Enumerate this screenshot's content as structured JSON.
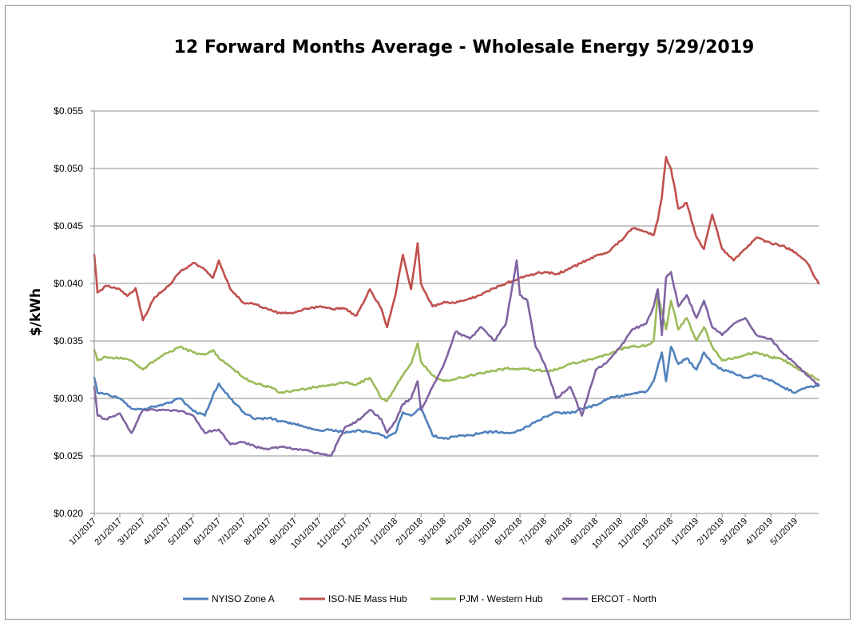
{
  "chart_data": {
    "type": "line",
    "title": "12 Forward Months Average - Wholesale Energy 5/29/2019",
    "xlabel": "",
    "ylabel": "$/kWh",
    "ylim": [
      0.02,
      0.055
    ],
    "y_ticks": [
      "$0.020",
      "$0.025",
      "$0.030",
      "$0.035",
      "$0.040",
      "$0.045",
      "$0.050",
      "$0.055"
    ],
    "y_tick_values": [
      0.02,
      0.025,
      0.03,
      0.035,
      0.04,
      0.045,
      0.05,
      0.055
    ],
    "x_range": [
      "1/1/2017",
      "5/29/2019"
    ],
    "x_ticks": [
      "1/1/2017",
      "2/1/2017",
      "3/1/2017",
      "4/1/2017",
      "5/1/2017",
      "6/1/2017",
      "7/1/2017",
      "8/1/2017",
      "9/1/2017",
      "10/1/2017",
      "11/1/2017",
      "12/1/2017",
      "1/1/2018",
      "2/1/2018",
      "3/1/2018",
      "4/1/2018",
      "5/1/2018",
      "6/1/2018",
      "7/1/2018",
      "8/1/2018",
      "9/1/2018",
      "10/1/2018",
      "11/1/2018",
      "12/1/2018",
      "1/1/2019",
      "2/1/2019",
      "3/1/2019",
      "4/1/2019",
      "5/1/2019"
    ],
    "grid": true,
    "legend_position": "bottom",
    "series": [
      {
        "name": "NYISO Zone A",
        "color": "#4f81bd",
        "x": [
          "1/1/2017",
          "1/5/2017",
          "1/15/2017",
          "2/1/2017",
          "2/15/2017",
          "3/1/2017",
          "3/15/2017",
          "4/1/2017",
          "4/15/2017",
          "5/1/2017",
          "5/15/2017",
          "5/25/2017",
          "6/1/2017",
          "6/15/2017",
          "7/1/2017",
          "7/15/2017",
          "8/1/2017",
          "8/15/2017",
          "9/1/2017",
          "9/15/2017",
          "10/1/2017",
          "10/15/2017",
          "11/1/2017",
          "11/15/2017",
          "12/1/2017",
          "12/15/2017",
          "12/22/2017",
          "1/1/2018",
          "1/10/2018",
          "1/20/2018",
          "2/1/2018",
          "2/15/2018",
          "3/1/2018",
          "3/15/2018",
          "4/1/2018",
          "4/15/2018",
          "5/1/2018",
          "5/15/2018",
          "6/1/2018",
          "6/15/2018",
          "7/1/2018",
          "7/15/2018",
          "8/1/2018",
          "8/15/2018",
          "9/1/2018",
          "9/15/2018",
          "10/1/2018",
          "10/15/2018",
          "11/1/2018",
          "11/10/2018",
          "11/20/2018",
          "11/25/2018",
          "12/1/2018",
          "12/10/2018",
          "12/20/2018",
          "1/1/2019",
          "1/10/2019",
          "1/20/2019",
          "2/1/2019",
          "2/15/2019",
          "3/1/2019",
          "3/15/2019",
          "4/1/2019",
          "4/15/2019",
          "5/1/2019",
          "5/15/2019",
          "5/29/2019"
        ],
        "y": [
          0.0318,
          0.0305,
          0.0304,
          0.03,
          0.0291,
          0.029,
          0.0293,
          0.0296,
          0.03,
          0.0289,
          0.0285,
          0.0303,
          0.0313,
          0.03,
          0.0288,
          0.0282,
          0.0283,
          0.028,
          0.0278,
          0.0275,
          0.0272,
          0.0273,
          0.027,
          0.0272,
          0.0271,
          0.0268,
          0.0266,
          0.027,
          0.0288,
          0.0285,
          0.0293,
          0.0268,
          0.0265,
          0.0267,
          0.0268,
          0.027,
          0.0271,
          0.027,
          0.0272,
          0.0278,
          0.0284,
          0.0288,
          0.0287,
          0.0291,
          0.0294,
          0.03,
          0.0302,
          0.0304,
          0.0306,
          0.0315,
          0.034,
          0.0315,
          0.0345,
          0.033,
          0.0335,
          0.0325,
          0.034,
          0.033,
          0.0325,
          0.0322,
          0.0318,
          0.032,
          0.0316,
          0.031,
          0.0305,
          0.031,
          0.0311
        ]
      },
      {
        "name": "ISO-NE Mass Hub",
        "color": "#c0504d",
        "x": [
          "1/1/2017",
          "1/5/2017",
          "1/15/2017",
          "2/1/2017",
          "2/10/2017",
          "2/20/2017",
          "3/1/2017",
          "3/15/2017",
          "4/1/2017",
          "4/15/2017",
          "5/1/2017",
          "5/15/2017",
          "5/25/2017",
          "6/1/2017",
          "6/15/2017",
          "7/1/2017",
          "7/15/2017",
          "8/1/2017",
          "8/15/2017",
          "9/1/2017",
          "9/15/2017",
          "10/1/2017",
          "10/15/2017",
          "11/1/2017",
          "11/15/2017",
          "12/1/2017",
          "12/15/2017",
          "12/22/2017",
          "1/1/2018",
          "1/10/2018",
          "1/20/2018",
          "1/28/2018",
          "2/1/2018",
          "2/15/2018",
          "3/1/2018",
          "3/15/2018",
          "4/1/2018",
          "4/15/2018",
          "5/1/2018",
          "5/15/2018",
          "6/1/2018",
          "6/15/2018",
          "7/1/2018",
          "7/15/2018",
          "8/1/2018",
          "8/15/2018",
          "9/1/2018",
          "9/15/2018",
          "10/1/2018",
          "10/15/2018",
          "11/1/2018",
          "11/10/2018",
          "11/15/2018",
          "11/20/2018",
          "11/25/2018",
          "12/1/2018",
          "12/10/2018",
          "12/20/2018",
          "1/1/2019",
          "1/10/2019",
          "1/20/2019",
          "2/1/2019",
          "2/15/2019",
          "3/1/2019",
          "3/15/2019",
          "4/1/2019",
          "4/15/2019",
          "5/1/2019",
          "5/15/2019",
          "5/29/2019"
        ],
        "y": [
          0.0425,
          0.0392,
          0.0398,
          0.0395,
          0.0389,
          0.0396,
          0.0368,
          0.0388,
          0.0398,
          0.041,
          0.0418,
          0.0412,
          0.0405,
          0.042,
          0.0395,
          0.0383,
          0.0382,
          0.0377,
          0.0374,
          0.0375,
          0.0378,
          0.038,
          0.0378,
          0.0378,
          0.0372,
          0.0395,
          0.0378,
          0.0362,
          0.039,
          0.0425,
          0.0395,
          0.0435,
          0.04,
          0.038,
          0.0384,
          0.0383,
          0.0387,
          0.039,
          0.0396,
          0.04,
          0.0405,
          0.0408,
          0.041,
          0.0408,
          0.0413,
          0.0418,
          0.0424,
          0.0427,
          0.0437,
          0.0448,
          0.0445,
          0.0442,
          0.0455,
          0.0475,
          0.051,
          0.05,
          0.0465,
          0.047,
          0.044,
          0.043,
          0.046,
          0.043,
          0.042,
          0.043,
          0.044,
          0.0435,
          0.0433,
          0.0427,
          0.0418,
          0.04
        ]
      },
      {
        "name": "PJM - Western Hub",
        "color": "#9bbb59",
        "x": [
          "1/1/2017",
          "1/5/2017",
          "1/15/2017",
          "2/1/2017",
          "2/15/2017",
          "3/1/2017",
          "3/15/2017",
          "4/1/2017",
          "4/15/2017",
          "5/1/2017",
          "5/15/2017",
          "5/25/2017",
          "6/1/2017",
          "6/15/2017",
          "7/1/2017",
          "7/15/2017",
          "8/1/2017",
          "8/15/2017",
          "9/1/2017",
          "9/15/2017",
          "10/1/2017",
          "10/15/2017",
          "11/1/2017",
          "11/15/2017",
          "12/1/2017",
          "12/15/2017",
          "12/22/2017",
          "1/1/2018",
          "1/10/2018",
          "1/20/2018",
          "1/28/2018",
          "2/1/2018",
          "2/15/2018",
          "3/1/2018",
          "3/15/2018",
          "4/1/2018",
          "4/15/2018",
          "5/1/2018",
          "5/15/2018",
          "6/1/2018",
          "6/15/2018",
          "7/1/2018",
          "7/15/2018",
          "8/1/2018",
          "8/15/2018",
          "9/1/2018",
          "9/15/2018",
          "10/1/2018",
          "10/15/2018",
          "11/1/2018",
          "11/10/2018",
          "11/15/2018",
          "11/20/2018",
          "11/25/2018",
          "12/1/2018",
          "12/10/2018",
          "12/20/2018",
          "1/1/2019",
          "1/10/2019",
          "1/20/2019",
          "2/1/2019",
          "2/15/2019",
          "3/1/2019",
          "3/15/2019",
          "4/1/2019",
          "4/15/2019",
          "5/1/2019",
          "5/15/2019",
          "5/29/2019"
        ],
        "y": [
          0.0342,
          0.0333,
          0.0336,
          0.0335,
          0.0333,
          0.0325,
          0.0333,
          0.034,
          0.0345,
          0.034,
          0.0338,
          0.0342,
          0.0335,
          0.0328,
          0.0318,
          0.0313,
          0.031,
          0.0305,
          0.0307,
          0.0308,
          0.0311,
          0.0312,
          0.0314,
          0.0312,
          0.0318,
          0.03,
          0.0298,
          0.031,
          0.032,
          0.033,
          0.0348,
          0.0332,
          0.032,
          0.0315,
          0.0317,
          0.032,
          0.0322,
          0.0324,
          0.0326,
          0.0326,
          0.0325,
          0.0324,
          0.0325,
          0.033,
          0.0332,
          0.0335,
          0.0338,
          0.0343,
          0.0345,
          0.0346,
          0.035,
          0.039,
          0.0375,
          0.036,
          0.0385,
          0.036,
          0.037,
          0.035,
          0.0362,
          0.0345,
          0.0333,
          0.0335,
          0.0338,
          0.034,
          0.0336,
          0.0334,
          0.0327,
          0.0322,
          0.0316
        ]
      },
      {
        "name": "ERCOT - North",
        "color": "#8064a2",
        "x": [
          "1/1/2017",
          "1/5/2017",
          "1/15/2017",
          "2/1/2017",
          "2/15/2017",
          "3/1/2017",
          "3/15/2017",
          "4/1/2017",
          "4/15/2017",
          "5/1/2017",
          "5/15/2017",
          "5/25/2017",
          "6/1/2017",
          "6/15/2017",
          "7/1/2017",
          "7/15/2017",
          "8/1/2017",
          "8/15/2017",
          "9/1/2017",
          "9/15/2017",
          "10/1/2017",
          "10/15/2017",
          "11/1/2017",
          "11/15/2017",
          "12/1/2017",
          "12/15/2017",
          "12/22/2017",
          "1/1/2018",
          "1/10/2018",
          "1/20/2018",
          "1/28/2018",
          "2/1/2018",
          "2/15/2018",
          "3/1/2018",
          "3/15/2018",
          "4/1/2018",
          "4/15/2018",
          "5/1/2018",
          "5/15/2018",
          "5/28/2018",
          "6/1/2018",
          "6/10/2018",
          "6/20/2018",
          "7/1/2018",
          "7/15/2018",
          "8/1/2018",
          "8/15/2018",
          "9/1/2018",
          "9/15/2018",
          "10/1/2018",
          "10/15/2018",
          "11/1/2018",
          "11/10/2018",
          "11/15/2018",
          "11/20/2018",
          "11/25/2018",
          "12/1/2018",
          "12/10/2018",
          "12/20/2018",
          "1/1/2019",
          "1/10/2019",
          "1/20/2019",
          "2/1/2019",
          "2/15/2019",
          "3/1/2019",
          "3/15/2019",
          "4/1/2019",
          "4/15/2019",
          "5/1/2019",
          "5/15/2019",
          "5/29/2019"
        ],
        "y": [
          0.031,
          0.0285,
          0.0282,
          0.0287,
          0.027,
          0.029,
          0.029,
          0.029,
          0.0289,
          0.0285,
          0.027,
          0.0272,
          0.0273,
          0.026,
          0.0262,
          0.0258,
          0.0256,
          0.0258,
          0.0256,
          0.0255,
          0.0252,
          0.025,
          0.0275,
          0.028,
          0.029,
          0.0282,
          0.027,
          0.028,
          0.0295,
          0.03,
          0.0315,
          0.029,
          0.031,
          0.033,
          0.0358,
          0.0352,
          0.0362,
          0.035,
          0.0365,
          0.042,
          0.039,
          0.0385,
          0.0345,
          0.033,
          0.03,
          0.031,
          0.0285,
          0.0325,
          0.0332,
          0.0345,
          0.036,
          0.0365,
          0.038,
          0.0395,
          0.0355,
          0.0405,
          0.041,
          0.038,
          0.039,
          0.037,
          0.0385,
          0.0362,
          0.0355,
          0.0365,
          0.037,
          0.0355,
          0.0352,
          0.034,
          0.033,
          0.032,
          0.0312
        ]
      }
    ]
  }
}
